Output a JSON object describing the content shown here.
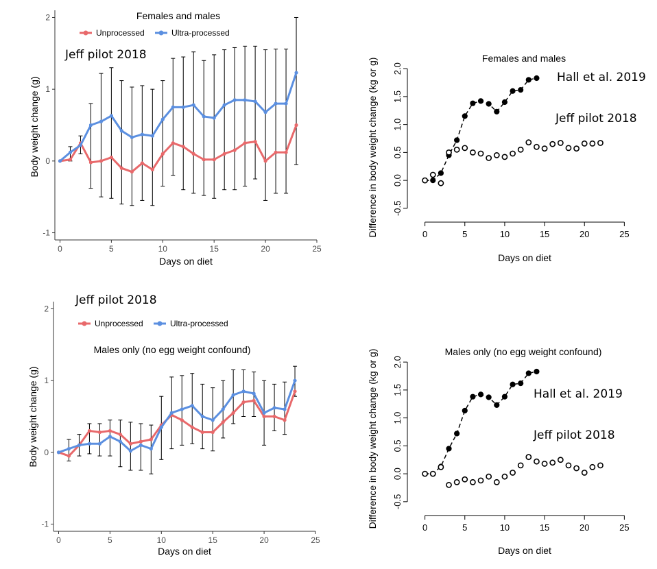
{
  "chart_data": [
    {
      "type": "line",
      "panel": "top-left",
      "title": "Females and males",
      "annotation": "Jeff pilot 2018",
      "xlabel": "Days on diet",
      "ylabel": "Body weight change (g)",
      "xlim": [
        -0.5,
        25
      ],
      "ylim": [
        -1.1,
        2.1
      ],
      "xticks": [
        0,
        5,
        10,
        15,
        20,
        25
      ],
      "yticks": [
        -1,
        0,
        1,
        2
      ],
      "legend": {
        "position": "top",
        "entries": [
          "Unprocessed",
          "Ultra-processed"
        ]
      },
      "series": [
        {
          "name": "Unprocessed",
          "color": "#E8696B",
          "x": [
            0,
            1,
            2,
            3,
            4,
            5,
            6,
            7,
            8,
            9,
            10,
            11,
            12,
            13,
            14,
            15,
            16,
            17,
            18,
            19,
            20,
            21,
            22,
            23
          ],
          "y": [
            0,
            0.02,
            0.25,
            -0.02,
            0.0,
            0.05,
            -0.1,
            -0.15,
            -0.03,
            -0.12,
            0.1,
            0.25,
            0.2,
            0.1,
            0.02,
            0.02,
            0.1,
            0.15,
            0.25,
            0.27,
            0.0,
            0.12,
            0.12,
            0.5
          ]
        },
        {
          "name": "Ultra-processed",
          "color": "#5B8FE0",
          "x": [
            0,
            1,
            2,
            3,
            4,
            5,
            6,
            7,
            8,
            9,
            10,
            11,
            12,
            13,
            14,
            15,
            16,
            17,
            18,
            19,
            20,
            21,
            22,
            23
          ],
          "y": [
            0,
            0.12,
            0.22,
            0.5,
            0.55,
            0.63,
            0.42,
            0.33,
            0.37,
            0.35,
            0.58,
            0.75,
            0.75,
            0.78,
            0.62,
            0.6,
            0.78,
            0.85,
            0.85,
            0.83,
            0.68,
            0.8,
            0.8,
            1.23
          ],
          "err_lo": [
            0,
            0.0,
            0.1,
            -0.38,
            -0.5,
            -0.52,
            -0.6,
            -0.62,
            -0.55,
            -0.62,
            -0.35,
            -0.2,
            -0.4,
            -0.45,
            -0.48,
            -0.52,
            -0.4,
            -0.4,
            -0.35,
            -0.25,
            -0.55,
            -0.45,
            -0.45,
            -0.05
          ],
          "err_hi": [
            0,
            0.2,
            0.35,
            0.8,
            1.22,
            1.3,
            1.12,
            1.03,
            1.05,
            1.0,
            1.12,
            1.43,
            1.45,
            1.52,
            1.4,
            1.48,
            1.55,
            1.58,
            1.6,
            1.6,
            1.55,
            1.56,
            1.56,
            2.0
          ]
        }
      ]
    },
    {
      "type": "scatter",
      "panel": "top-right",
      "title": "Females and males",
      "xlabel": "Days on diet",
      "ylabel": "Difference in body weight change (kg or g)",
      "xlim": [
        -1,
        26
      ],
      "ylim": [
        -0.6,
        2.1
      ],
      "xticks": [
        0,
        5,
        10,
        15,
        20,
        25
      ],
      "yticks": [
        -0.5,
        0.0,
        0.5,
        1.0,
        1.5,
        2.0
      ],
      "ytick_labels": [
        "-0.5",
        "0.0",
        "0.5",
        "1.0",
        "1.5",
        "2.0"
      ],
      "series": [
        {
          "name": "Hall et al. 2019",
          "marker": "filled",
          "x": [
            0,
            1,
            2,
            3,
            4,
            5,
            6,
            7,
            8,
            9,
            10,
            11,
            12,
            13,
            14
          ],
          "y": [
            0,
            0,
            0.13,
            0.45,
            0.72,
            1.15,
            1.38,
            1.42,
            1.37,
            1.23,
            1.4,
            1.6,
            1.62,
            1.8,
            1.83
          ]
        },
        {
          "name": "Jeff pilot 2018",
          "marker": "open",
          "x": [
            0,
            1,
            2,
            3,
            4,
            5,
            6,
            7,
            8,
            9,
            10,
            11,
            12,
            13,
            14,
            15,
            16,
            17,
            18,
            19,
            20,
            21,
            22
          ],
          "y": [
            0.0,
            0.1,
            -0.05,
            0.5,
            0.55,
            0.58,
            0.5,
            0.48,
            0.4,
            0.45,
            0.42,
            0.48,
            0.55,
            0.68,
            0.6,
            0.57,
            0.65,
            0.67,
            0.58,
            0.57,
            0.66,
            0.66,
            0.67
          ]
        }
      ],
      "annotations": [
        "Hall et al. 2019",
        "Jeff pilot 2018"
      ]
    },
    {
      "type": "line",
      "panel": "bottom-left",
      "title": "Males only (no egg weight confound)",
      "annotation": "Jeff pilot 2018",
      "xlabel": "Days on diet",
      "ylabel": "Body weight change (g)",
      "xlim": [
        -0.5,
        25
      ],
      "ylim": [
        -1.1,
        2.1
      ],
      "xticks": [
        0,
        5,
        10,
        15,
        20,
        25
      ],
      "yticks": [
        -1,
        0,
        1,
        2
      ],
      "legend": {
        "position": "top",
        "entries": [
          "Unprocessed",
          "Ultra-processed"
        ]
      },
      "series": [
        {
          "name": "Unprocessed",
          "color": "#E8696B",
          "x": [
            0,
            1,
            2,
            3,
            4,
            5,
            6,
            7,
            8,
            9,
            10,
            11,
            12,
            13,
            14,
            15,
            16,
            17,
            18,
            19,
            20,
            21,
            22,
            23
          ],
          "y": [
            0,
            -0.05,
            0.1,
            0.3,
            0.28,
            0.3,
            0.25,
            0.12,
            0.15,
            0.18,
            0.38,
            0.52,
            0.45,
            0.35,
            0.28,
            0.28,
            0.42,
            0.55,
            0.7,
            0.72,
            0.5,
            0.5,
            0.45,
            0.85
          ]
        },
        {
          "name": "Ultra-processed",
          "color": "#5B8FE0",
          "x": [
            0,
            1,
            2,
            3,
            4,
            5,
            6,
            7,
            8,
            9,
            10,
            11,
            12,
            13,
            14,
            15,
            16,
            17,
            18,
            19,
            20,
            21,
            22,
            23
          ],
          "y": [
            0,
            0.05,
            0.1,
            0.12,
            0.12,
            0.22,
            0.15,
            0.02,
            0.1,
            0.05,
            0.35,
            0.55,
            0.6,
            0.65,
            0.5,
            0.45,
            0.6,
            0.8,
            0.85,
            0.82,
            0.55,
            0.62,
            0.6,
            1.0
          ],
          "err_lo": [
            0,
            -0.12,
            -0.05,
            -0.02,
            -0.05,
            -0.05,
            -0.2,
            -0.25,
            -0.25,
            -0.3,
            -0.1,
            0.05,
            0.1,
            0.12,
            0.05,
            0.02,
            0.2,
            0.4,
            0.5,
            0.5,
            0.1,
            0.3,
            0.25,
            0.78
          ],
          "err_hi": [
            0,
            0.18,
            0.25,
            0.4,
            0.4,
            0.45,
            0.45,
            0.42,
            0.4,
            0.38,
            0.78,
            1.05,
            1.07,
            1.1,
            0.95,
            0.9,
            1.0,
            1.15,
            1.15,
            1.12,
            1.0,
            0.95,
            0.98,
            1.2
          ]
        }
      ]
    },
    {
      "type": "scatter",
      "panel": "bottom-right",
      "title": "Males only (no egg weight confound)",
      "xlabel": "Days on diet",
      "ylabel": "Difference in body weight change (kg or g)",
      "xlim": [
        -1,
        26
      ],
      "ylim": [
        -0.6,
        2.1
      ],
      "xticks": [
        0,
        5,
        10,
        15,
        20,
        25
      ],
      "yticks": [
        -0.5,
        0.0,
        0.5,
        1.0,
        1.5,
        2.0
      ],
      "ytick_labels": [
        "-0.5",
        "0.0",
        "0.5",
        "1.0",
        "1.5",
        "2.0"
      ],
      "series": [
        {
          "name": "Hall et al. 2019",
          "marker": "filled",
          "x": [
            0,
            1,
            2,
            3,
            4,
            5,
            6,
            7,
            8,
            9,
            10,
            11,
            12,
            13,
            14
          ],
          "y": [
            0,
            0,
            0.13,
            0.45,
            0.72,
            1.13,
            1.38,
            1.42,
            1.37,
            1.23,
            1.38,
            1.6,
            1.62,
            1.8,
            1.83
          ]
        },
        {
          "name": "Jeff pilot 2018",
          "marker": "open",
          "x": [
            0,
            1,
            2,
            3,
            4,
            5,
            6,
            7,
            8,
            9,
            10,
            11,
            12,
            13,
            14,
            15,
            16,
            17,
            18,
            19,
            20,
            21,
            22
          ],
          "y": [
            0.0,
            0.0,
            0.12,
            -0.2,
            -0.15,
            -0.1,
            -0.15,
            -0.12,
            -0.05,
            -0.15,
            -0.05,
            0.02,
            0.15,
            0.3,
            0.22,
            0.18,
            0.2,
            0.25,
            0.15,
            0.1,
            0.02,
            0.12,
            0.15
          ]
        }
      ],
      "annotations": [
        "Hall et al. 2019",
        "Jeff pilot 2018"
      ]
    }
  ]
}
